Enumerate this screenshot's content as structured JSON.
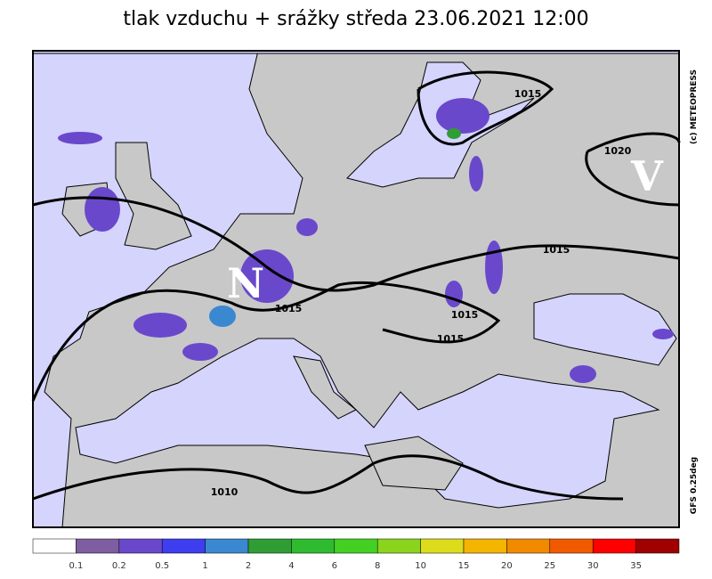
{
  "title": "tlak vzduchu + srážky  středa 23.06.2021 12:00",
  "map": {
    "pressure_centers": [
      "N",
      "V"
    ],
    "isobar_labels": [
      1015,
      1020,
      1015,
      1015,
      1015,
      1015,
      1010
    ],
    "credits": [
      "(c) METEOPRESS",
      "GFS 0.25deg"
    ]
  },
  "legend": {
    "colors": [
      "#ffffff",
      "#7e5ea0",
      "#6a48cc",
      "#3e3ef0",
      "#3a88d0",
      "#2e9e34",
      "#2fbb2f",
      "#44d022",
      "#8ad41e",
      "#dcdc1c",
      "#f4b400",
      "#f28a00",
      "#f25a00",
      "#ff0000",
      "#a00000"
    ],
    "ticks": [
      0.1,
      0.2,
      0.5,
      1,
      2,
      4,
      6,
      8,
      10,
      15,
      20,
      25,
      30,
      35
    ]
  }
}
